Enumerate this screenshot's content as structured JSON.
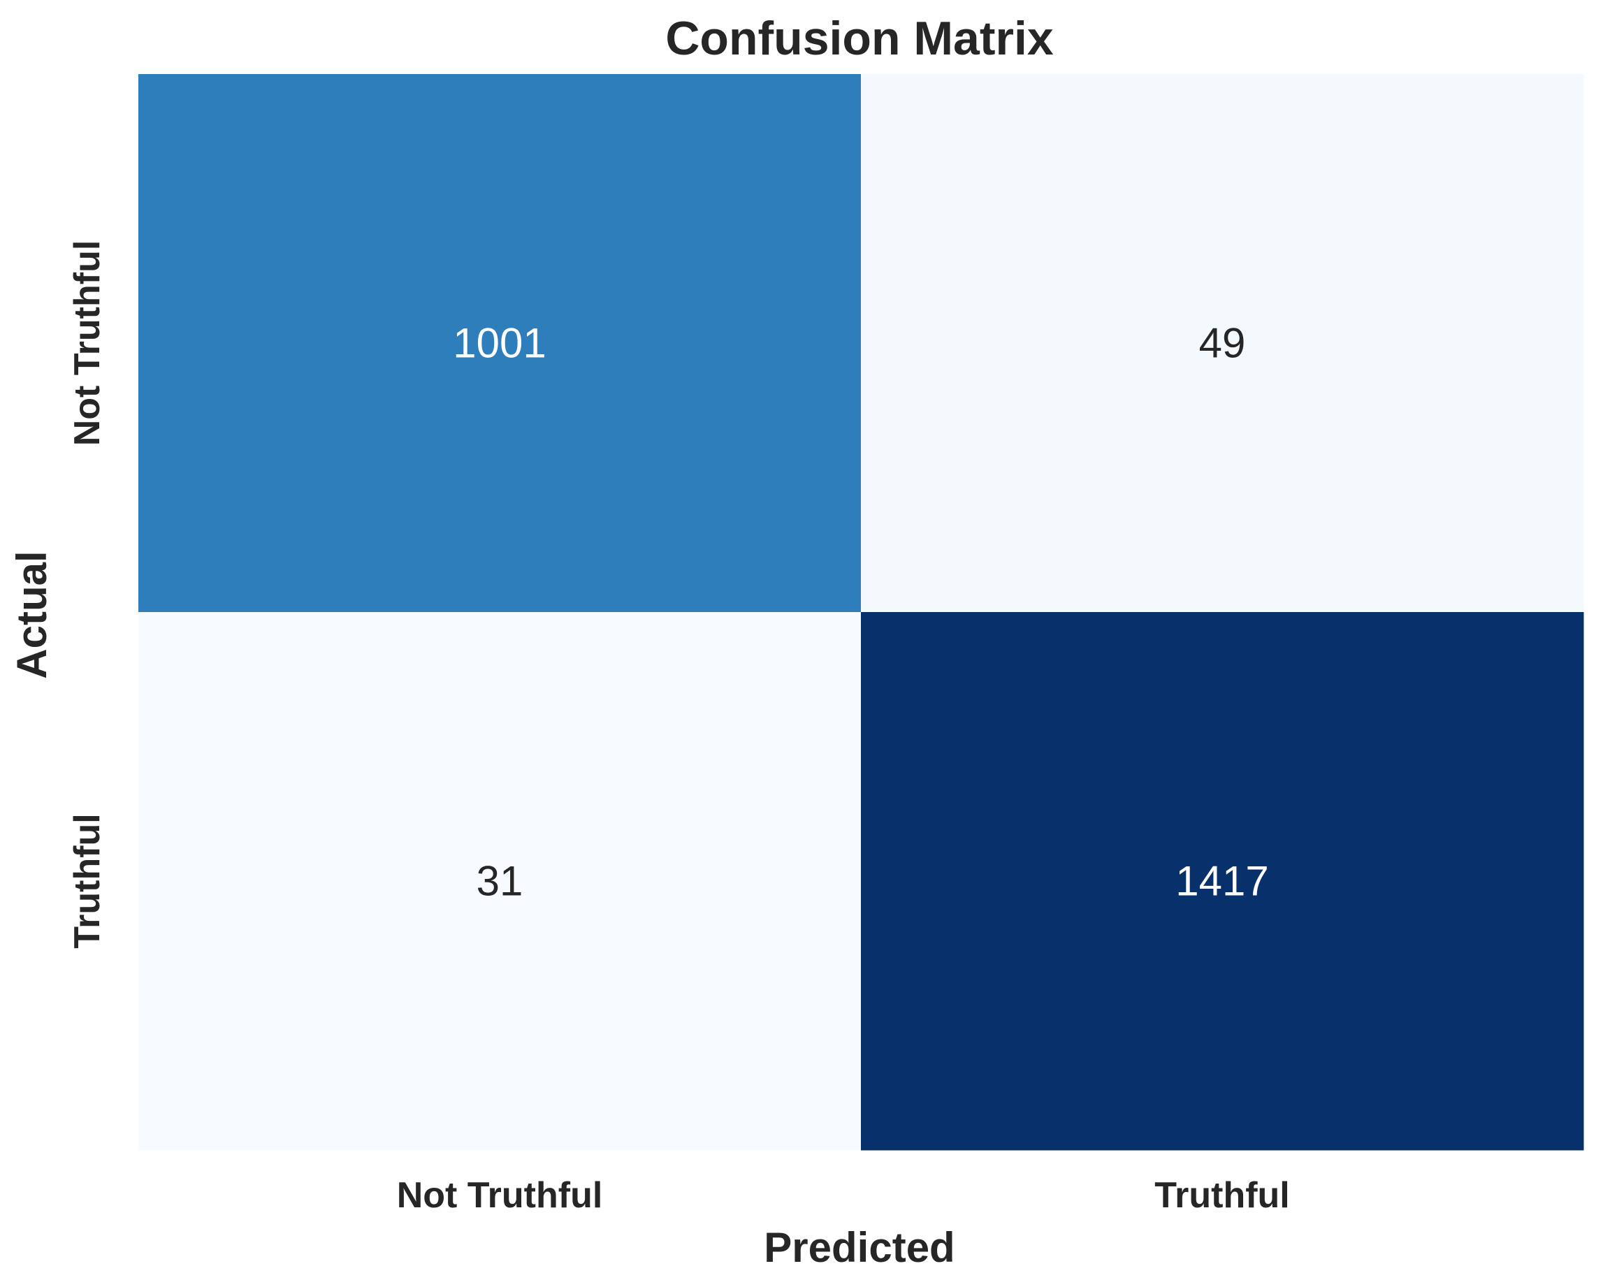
{
  "chart_data": {
    "type": "heatmap",
    "title": "Confusion Matrix",
    "xlabel": "Predicted",
    "ylabel": "Actual",
    "x_categories": [
      "Not Truthful",
      "Truthful"
    ],
    "y_categories": [
      "Not Truthful",
      "Truthful"
    ],
    "values": [
      [
        1001,
        49
      ],
      [
        31,
        1417
      ]
    ],
    "colormap": "Blues",
    "colorbar": false,
    "colors": {
      "low": "#f7fbff",
      "mid": "#2e7ebc",
      "high": "#08306b",
      "text_on_dark": "#ffffff",
      "text_on_light": "#262626"
    }
  }
}
